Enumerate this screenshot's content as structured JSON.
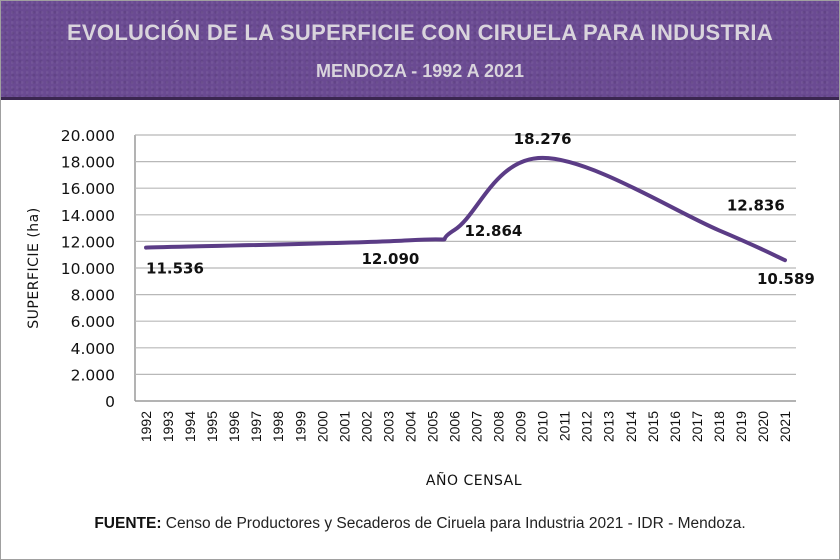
{
  "header": {
    "title": "EVOLUCIÓN DE LA SUPERFICIE CON CIRUELA PARA INDUSTRIA",
    "subtitle": "MENDOZA - 1992 A 2021"
  },
  "source": {
    "label": "FUENTE:",
    "text": " Censo de Productores y Secaderos de Ciruela para Industria 2021 - IDR - Mendoza."
  },
  "colors": {
    "line": "#5b3c86",
    "header_bg": "#6a4a92",
    "grid": "#b8b8b8"
  },
  "chart_data": {
    "type": "line",
    "title": "EVOLUCIÓN DE LA SUPERFICIE CON CIRUELA PARA INDUSTRIA",
    "subtitle": "MENDOZA - 1992 A 2021",
    "xlabel": "AÑO CENSAL",
    "ylabel": "SUPERFICIE (ha)",
    "ylim": [
      0,
      20000
    ],
    "yticks": [
      0,
      2000,
      4000,
      6000,
      8000,
      10000,
      12000,
      14000,
      16000,
      18000,
      20000
    ],
    "ytick_labels": [
      "0",
      "2.000",
      "4.000",
      "6.000",
      "8.000",
      "10.000",
      "12.000",
      "14.000",
      "16.000",
      "18.000",
      "20.000"
    ],
    "categories": [
      "1992",
      "1993",
      "1994",
      "1995",
      "1996",
      "1997",
      "1998",
      "1999",
      "2000",
      "2001",
      "2002",
      "2003",
      "2004",
      "2005",
      "2006",
      "2007",
      "2008",
      "2009",
      "2010",
      "2011",
      "2012",
      "2013",
      "2014",
      "2015",
      "2016",
      "2017",
      "2018",
      "2019",
      "2020",
      "2021"
    ],
    "grid": true,
    "series": [
      {
        "name": "Superficie",
        "points": [
          {
            "x": "1992",
            "y": 11536,
            "label": "11.536"
          },
          {
            "x": "2004",
            "y": 12090,
            "label": "12.090"
          },
          {
            "x": "2006",
            "y": 12864,
            "label": "12.864"
          },
          {
            "x": "2010",
            "y": 18276,
            "label": "18.276"
          },
          {
            "x": "2018",
            "y": 12836,
            "label": "12.836"
          },
          {
            "x": "2021",
            "y": 10589,
            "label": "10.589"
          }
        ]
      }
    ]
  }
}
